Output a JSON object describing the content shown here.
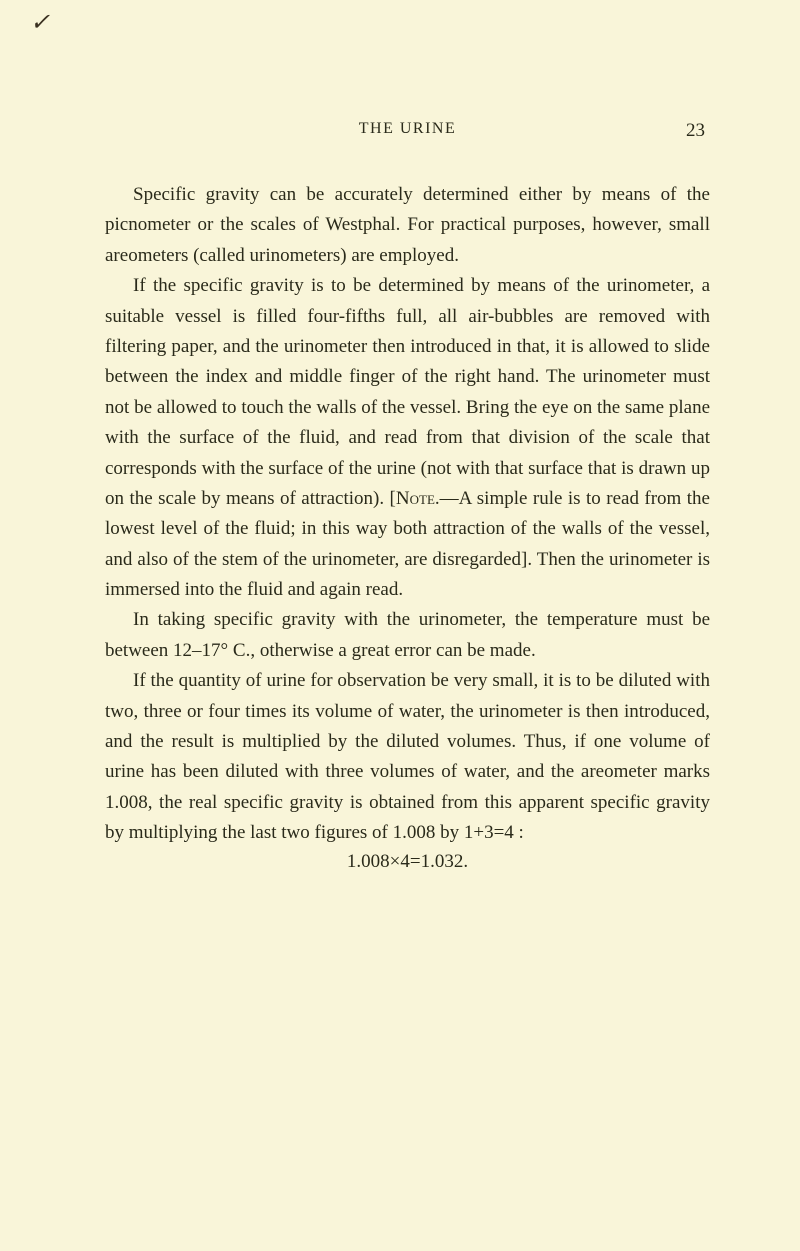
{
  "header": {
    "title": "THE URINE",
    "page_number": "23"
  },
  "paragraphs": {
    "p1": "Specific gravity can be accurately determined either by means of the picnometer or the scales of Westphal. For practical purposes, however, small areometers (called urinometers) are employed.",
    "p2_part1": "If the specific gravity is to be determined by means of the urinometer, a suitable vessel is filled four-fifths full, all air-bubbles are removed with filtering paper, and the urinometer then introduced in that, it is allowed to slide between the index and middle finger of the right hand. The urinometer must not be allowed to touch the walls of the vessel. Bring the eye on the same plane with the surface of the fluid, and read from that division of the scale that corresponds with the surface of the urine (not with that surface that is drawn up on the scale by means of attraction). [",
    "p2_note": "Note",
    "p2_part2": ".—A simple rule is to read from the lowest level of the fluid; in this way both attraction of the walls of the vessel, and also of the stem of the urinometer, are disregarded]. Then the urinometer is immersed into the fluid and again read.",
    "p3": "In taking specific gravity with the urinometer, the temperature must be between 12–17° C., otherwise a great error can be made.",
    "p4": "If the quantity of urine for observation be very small, it is to be diluted with two, three or four times its volume of water, the urinometer is then introduced, and the result is multiplied by the diluted volumes. Thus, if one volume of urine has been diluted with three volumes of water, and the areometer marks 1.008, the real specific gravity is obtained from this apparent specific gravity by multiplying the last two figures of 1.008 by 1+3=4 :"
  },
  "equation": "1.008×4=1.032.",
  "tick_mark": "✓",
  "style": {
    "background_color": "#f9f5d9",
    "text_color": "#2a2a1a",
    "body_fontsize": 19,
    "header_fontsize": 16,
    "line_height": 1.6
  }
}
